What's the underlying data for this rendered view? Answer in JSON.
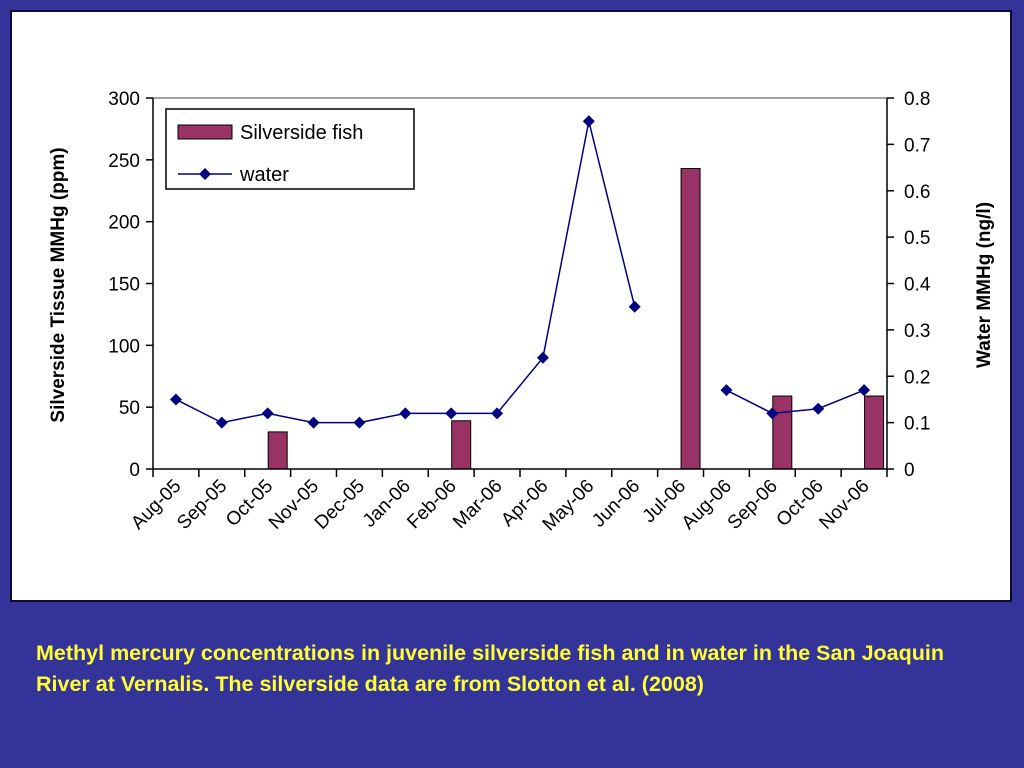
{
  "caption": "Methyl mercury concentrations in juvenile silverside fish and in water in the San Joaquin River at Vernalis. The silverside data are from Slotton et al. (2008)",
  "chart_data": {
    "type": "bar+line",
    "categories": [
      "Aug-05",
      "Sep-05",
      "Oct-05",
      "Nov-05",
      "Dec-05",
      "Jan-06",
      "Feb-06",
      "Mar-06",
      "Apr-06",
      "May-06",
      "Jun-06",
      "Jul-06",
      "Aug-06",
      "Sep-06",
      "Oct-06",
      "Nov-06"
    ],
    "ylabel_left": "Silverside Tissue  MMHg (ppm)",
    "ylabel_right": "Water MMHg (ng/l)",
    "ylim_left": [
      0,
      300
    ],
    "ylim_right": [
      0,
      0.8
    ],
    "yticks_left": [
      "0",
      "50",
      "100",
      "150",
      "200",
      "250",
      "300"
    ],
    "yticks_right": [
      "0",
      "0.1",
      "0.2",
      "0.3",
      "0.4",
      "0.5",
      "0.6",
      "0.7",
      "0.8"
    ],
    "legend_position": "top-left",
    "series": [
      {
        "name": "Silverside fish",
        "type": "bar",
        "axis": "left",
        "color": "#993366",
        "values": [
          null,
          null,
          30,
          null,
          null,
          null,
          39,
          null,
          null,
          null,
          null,
          243,
          null,
          59,
          null,
          59
        ]
      },
      {
        "name": "water",
        "type": "line",
        "axis": "right",
        "color": "#000080",
        "marker": "diamond",
        "values": [
          0.15,
          0.1,
          0.12,
          0.1,
          0.1,
          0.12,
          0.12,
          0.12,
          0.24,
          0.75,
          0.35,
          null,
          0.17,
          0.12,
          0.13,
          0.17
        ]
      }
    ]
  }
}
